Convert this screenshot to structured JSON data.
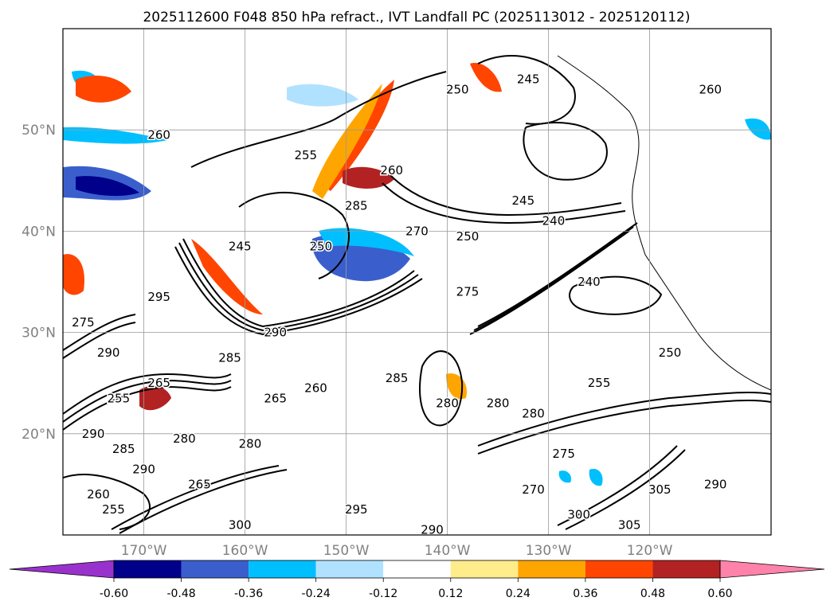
{
  "title": "2025112600 F048 850 hPa refract., IVT Landfall PC (2025113012 - 2025120112)",
  "map": {
    "lon_ticks": [
      {
        "lon": -170,
        "label": "170°W"
      },
      {
        "lon": -160,
        "label": "160°W"
      },
      {
        "lon": -150,
        "label": "150°W"
      },
      {
        "lon": -140,
        "label": "140°W"
      },
      {
        "lon": -130,
        "label": "130°W"
      },
      {
        "lon": -120,
        "label": "120°W"
      }
    ],
    "lat_ticks": [
      {
        "lat": 20,
        "label": "20°N"
      },
      {
        "lat": 30,
        "label": "30°N"
      },
      {
        "lat": 40,
        "label": "40°N"
      },
      {
        "lat": 50,
        "label": "50°N"
      }
    ],
    "lon_range": [
      -178,
      -108
    ],
    "lat_range": [
      10,
      60
    ],
    "grid": true
  },
  "colorbar": {
    "colors": [
      "#9932cc",
      "#00008b",
      "#3a5fcd",
      "#00bfff",
      "#b0e2ff",
      "#ffffff",
      "#ffec8b",
      "#ffa500",
      "#ff4500",
      "#b22222",
      "#ff82ab"
    ],
    "ticks": [
      "-0.60",
      "-0.48",
      "-0.36",
      "-0.24",
      "-0.12",
      "0.12",
      "0.24",
      "0.36",
      "0.48",
      "0.60"
    ],
    "extend": "both"
  },
  "contour_labels": [
    {
      "text": "260",
      "lon": -168.5,
      "lat": 49.5
    },
    {
      "text": "255",
      "lon": -154,
      "lat": 47.5
    },
    {
      "text": "245",
      "lon": -160.5,
      "lat": 38.5
    },
    {
      "text": "250",
      "lon": -152.5,
      "lat": 38.5
    },
    {
      "text": "295",
      "lon": -168.5,
      "lat": 33.5
    },
    {
      "text": "290",
      "lon": -157,
      "lat": 30
    },
    {
      "text": "285",
      "lon": -149,
      "lat": 42.5
    },
    {
      "text": "260",
      "lon": -145.5,
      "lat": 46
    },
    {
      "text": "270",
      "lon": -143,
      "lat": 40
    },
    {
      "text": "250",
      "lon": -138,
      "lat": 39.5
    },
    {
      "text": "245",
      "lon": -132.5,
      "lat": 43
    },
    {
      "text": "240",
      "lon": -129.5,
      "lat": 41
    },
    {
      "text": "275",
      "lon": -138,
      "lat": 34
    },
    {
      "text": "240",
      "lon": -126,
      "lat": 35
    },
    {
      "text": "250",
      "lon": -139,
      "lat": 54
    },
    {
      "text": "245",
      "lon": -132,
      "lat": 55
    },
    {
      "text": "260",
      "lon": -114,
      "lat": 54
    },
    {
      "text": "250",
      "lon": -118,
      "lat": 28
    },
    {
      "text": "255",
      "lon": -125,
      "lat": 25
    },
    {
      "text": "275",
      "lon": -176,
      "lat": 31
    },
    {
      "text": "290",
      "lon": -173.5,
      "lat": 28
    },
    {
      "text": "285",
      "lon": -161.5,
      "lat": 27.5
    },
    {
      "text": "265",
      "lon": -168.5,
      "lat": 25
    },
    {
      "text": "255",
      "lon": -172.5,
      "lat": 23.5
    },
    {
      "text": "260",
      "lon": -153,
      "lat": 24.5
    },
    {
      "text": "265",
      "lon": -157,
      "lat": 23.5
    },
    {
      "text": "285",
      "lon": -145,
      "lat": 25.5
    },
    {
      "text": "280",
      "lon": -140,
      "lat": 23
    },
    {
      "text": "280",
      "lon": -135,
      "lat": 23
    },
    {
      "text": "280",
      "lon": -131.5,
      "lat": 22
    },
    {
      "text": "290",
      "lon": -175,
      "lat": 20
    },
    {
      "text": "285",
      "lon": -172,
      "lat": 18.5
    },
    {
      "text": "280",
      "lon": -166,
      "lat": 19.5
    },
    {
      "text": "290",
      "lon": -170,
      "lat": 16.5
    },
    {
      "text": "280",
      "lon": -159.5,
      "lat": 19
    },
    {
      "text": "260",
      "lon": -174.5,
      "lat": 14
    },
    {
      "text": "255",
      "lon": -173,
      "lat": 12.5
    },
    {
      "text": "265",
      "lon": -164.5,
      "lat": 15
    },
    {
      "text": "300",
      "lon": -160.5,
      "lat": 11
    },
    {
      "text": "295",
      "lon": -149,
      "lat": 12.5
    },
    {
      "text": "290",
      "lon": -141.5,
      "lat": 10.5
    },
    {
      "text": "270",
      "lon": -131.5,
      "lat": 14.5
    },
    {
      "text": "300",
      "lon": -127,
      "lat": 12
    },
    {
      "text": "275",
      "lon": -128.5,
      "lat": 18
    },
    {
      "text": "305",
      "lon": -119,
      "lat": 14.5
    },
    {
      "text": "305",
      "lon": -122,
      "lat": 11
    },
    {
      "text": "290",
      "lon": -113.5,
      "lat": 15
    }
  ]
}
